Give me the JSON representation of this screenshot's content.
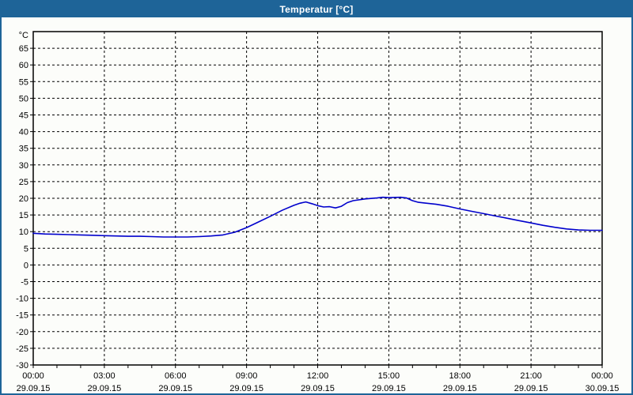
{
  "window": {
    "title": "Temperatur [°C]"
  },
  "colors": {
    "titlebar": "#1E6498",
    "titlebar_text": "#FFFFFF",
    "window_border": "#1E6498",
    "background": "#FCFDFA",
    "plot_border": "#000000",
    "grid": "#000000",
    "curve": "#0000CC",
    "label_text": "#000000"
  },
  "chart_data": {
    "type": "line",
    "title": "Temperatur [°C]",
    "legend": "none",
    "grid": "dashed",
    "y_axis": {
      "unit_label": "°C",
      "min": -30,
      "max": 70,
      "tick_step": 5,
      "tick_labels": [
        65,
        60,
        55,
        50,
        45,
        40,
        35,
        30,
        25,
        20,
        15,
        10,
        5,
        0,
        -5,
        -10,
        -15,
        -20,
        -25,
        -30
      ]
    },
    "x_axis": {
      "min_hour": 0,
      "max_hour": 24,
      "minor_tick_hours": 1,
      "major_tick_hours": 3,
      "labels": [
        {
          "hour": 0,
          "time": "00:00",
          "date": "29.09.15"
        },
        {
          "hour": 3,
          "time": "03:00",
          "date": "29.09.15"
        },
        {
          "hour": 6,
          "time": "06:00",
          "date": "29.09.15"
        },
        {
          "hour": 9,
          "time": "09:00",
          "date": "29.09.15"
        },
        {
          "hour": 12,
          "time": "12:00",
          "date": "29.09.15"
        },
        {
          "hour": 15,
          "time": "15:00",
          "date": "29.09.15"
        },
        {
          "hour": 18,
          "time": "18:00",
          "date": "29.09.15"
        },
        {
          "hour": 21,
          "time": "21:00",
          "date": "29.09.15"
        },
        {
          "hour": 24,
          "time": "00:00",
          "date": "30.09.15"
        }
      ]
    },
    "series": [
      {
        "name": "Temperatur",
        "points_hour_degC": [
          [
            0,
            9.5
          ],
          [
            0.5,
            9.3
          ],
          [
            1,
            9.2
          ],
          [
            1.5,
            9.1
          ],
          [
            2,
            9.0
          ],
          [
            2.5,
            8.9
          ],
          [
            3,
            8.8
          ],
          [
            3.5,
            8.7
          ],
          [
            4,
            8.6
          ],
          [
            4.5,
            8.6
          ],
          [
            5,
            8.5
          ],
          [
            5.5,
            8.4
          ],
          [
            6,
            8.4
          ],
          [
            6.5,
            8.4
          ],
          [
            7,
            8.5
          ],
          [
            7.5,
            8.7
          ],
          [
            8,
            9.0
          ],
          [
            8.5,
            9.8
          ],
          [
            9,
            11.2
          ],
          [
            9.5,
            12.9
          ],
          [
            10,
            14.6
          ],
          [
            10.5,
            16.4
          ],
          [
            11,
            17.9
          ],
          [
            11.25,
            18.5
          ],
          [
            11.5,
            18.9
          ],
          [
            11.75,
            18.4
          ],
          [
            12,
            17.8
          ],
          [
            12.25,
            17.4
          ],
          [
            12.5,
            17.5
          ],
          [
            12.75,
            17.1
          ],
          [
            13,
            17.6
          ],
          [
            13.25,
            18.7
          ],
          [
            13.5,
            19.3
          ],
          [
            14,
            19.8
          ],
          [
            14.5,
            20.1
          ],
          [
            14.75,
            20.3
          ],
          [
            15,
            20.2
          ],
          [
            15.5,
            20.3
          ],
          [
            15.75,
            20.1
          ],
          [
            16,
            19.3
          ],
          [
            16.25,
            18.8
          ],
          [
            16.5,
            18.6
          ],
          [
            17,
            18.2
          ],
          [
            17.5,
            17.6
          ],
          [
            18,
            16.8
          ],
          [
            18.5,
            16.1
          ],
          [
            19,
            15.4
          ],
          [
            19.5,
            14.7
          ],
          [
            20,
            14.0
          ],
          [
            20.5,
            13.3
          ],
          [
            21,
            12.6
          ],
          [
            21.5,
            11.9
          ],
          [
            22,
            11.3
          ],
          [
            22.5,
            10.8
          ],
          [
            23,
            10.5
          ],
          [
            23.5,
            10.4
          ],
          [
            24,
            10.4
          ]
        ]
      }
    ]
  }
}
